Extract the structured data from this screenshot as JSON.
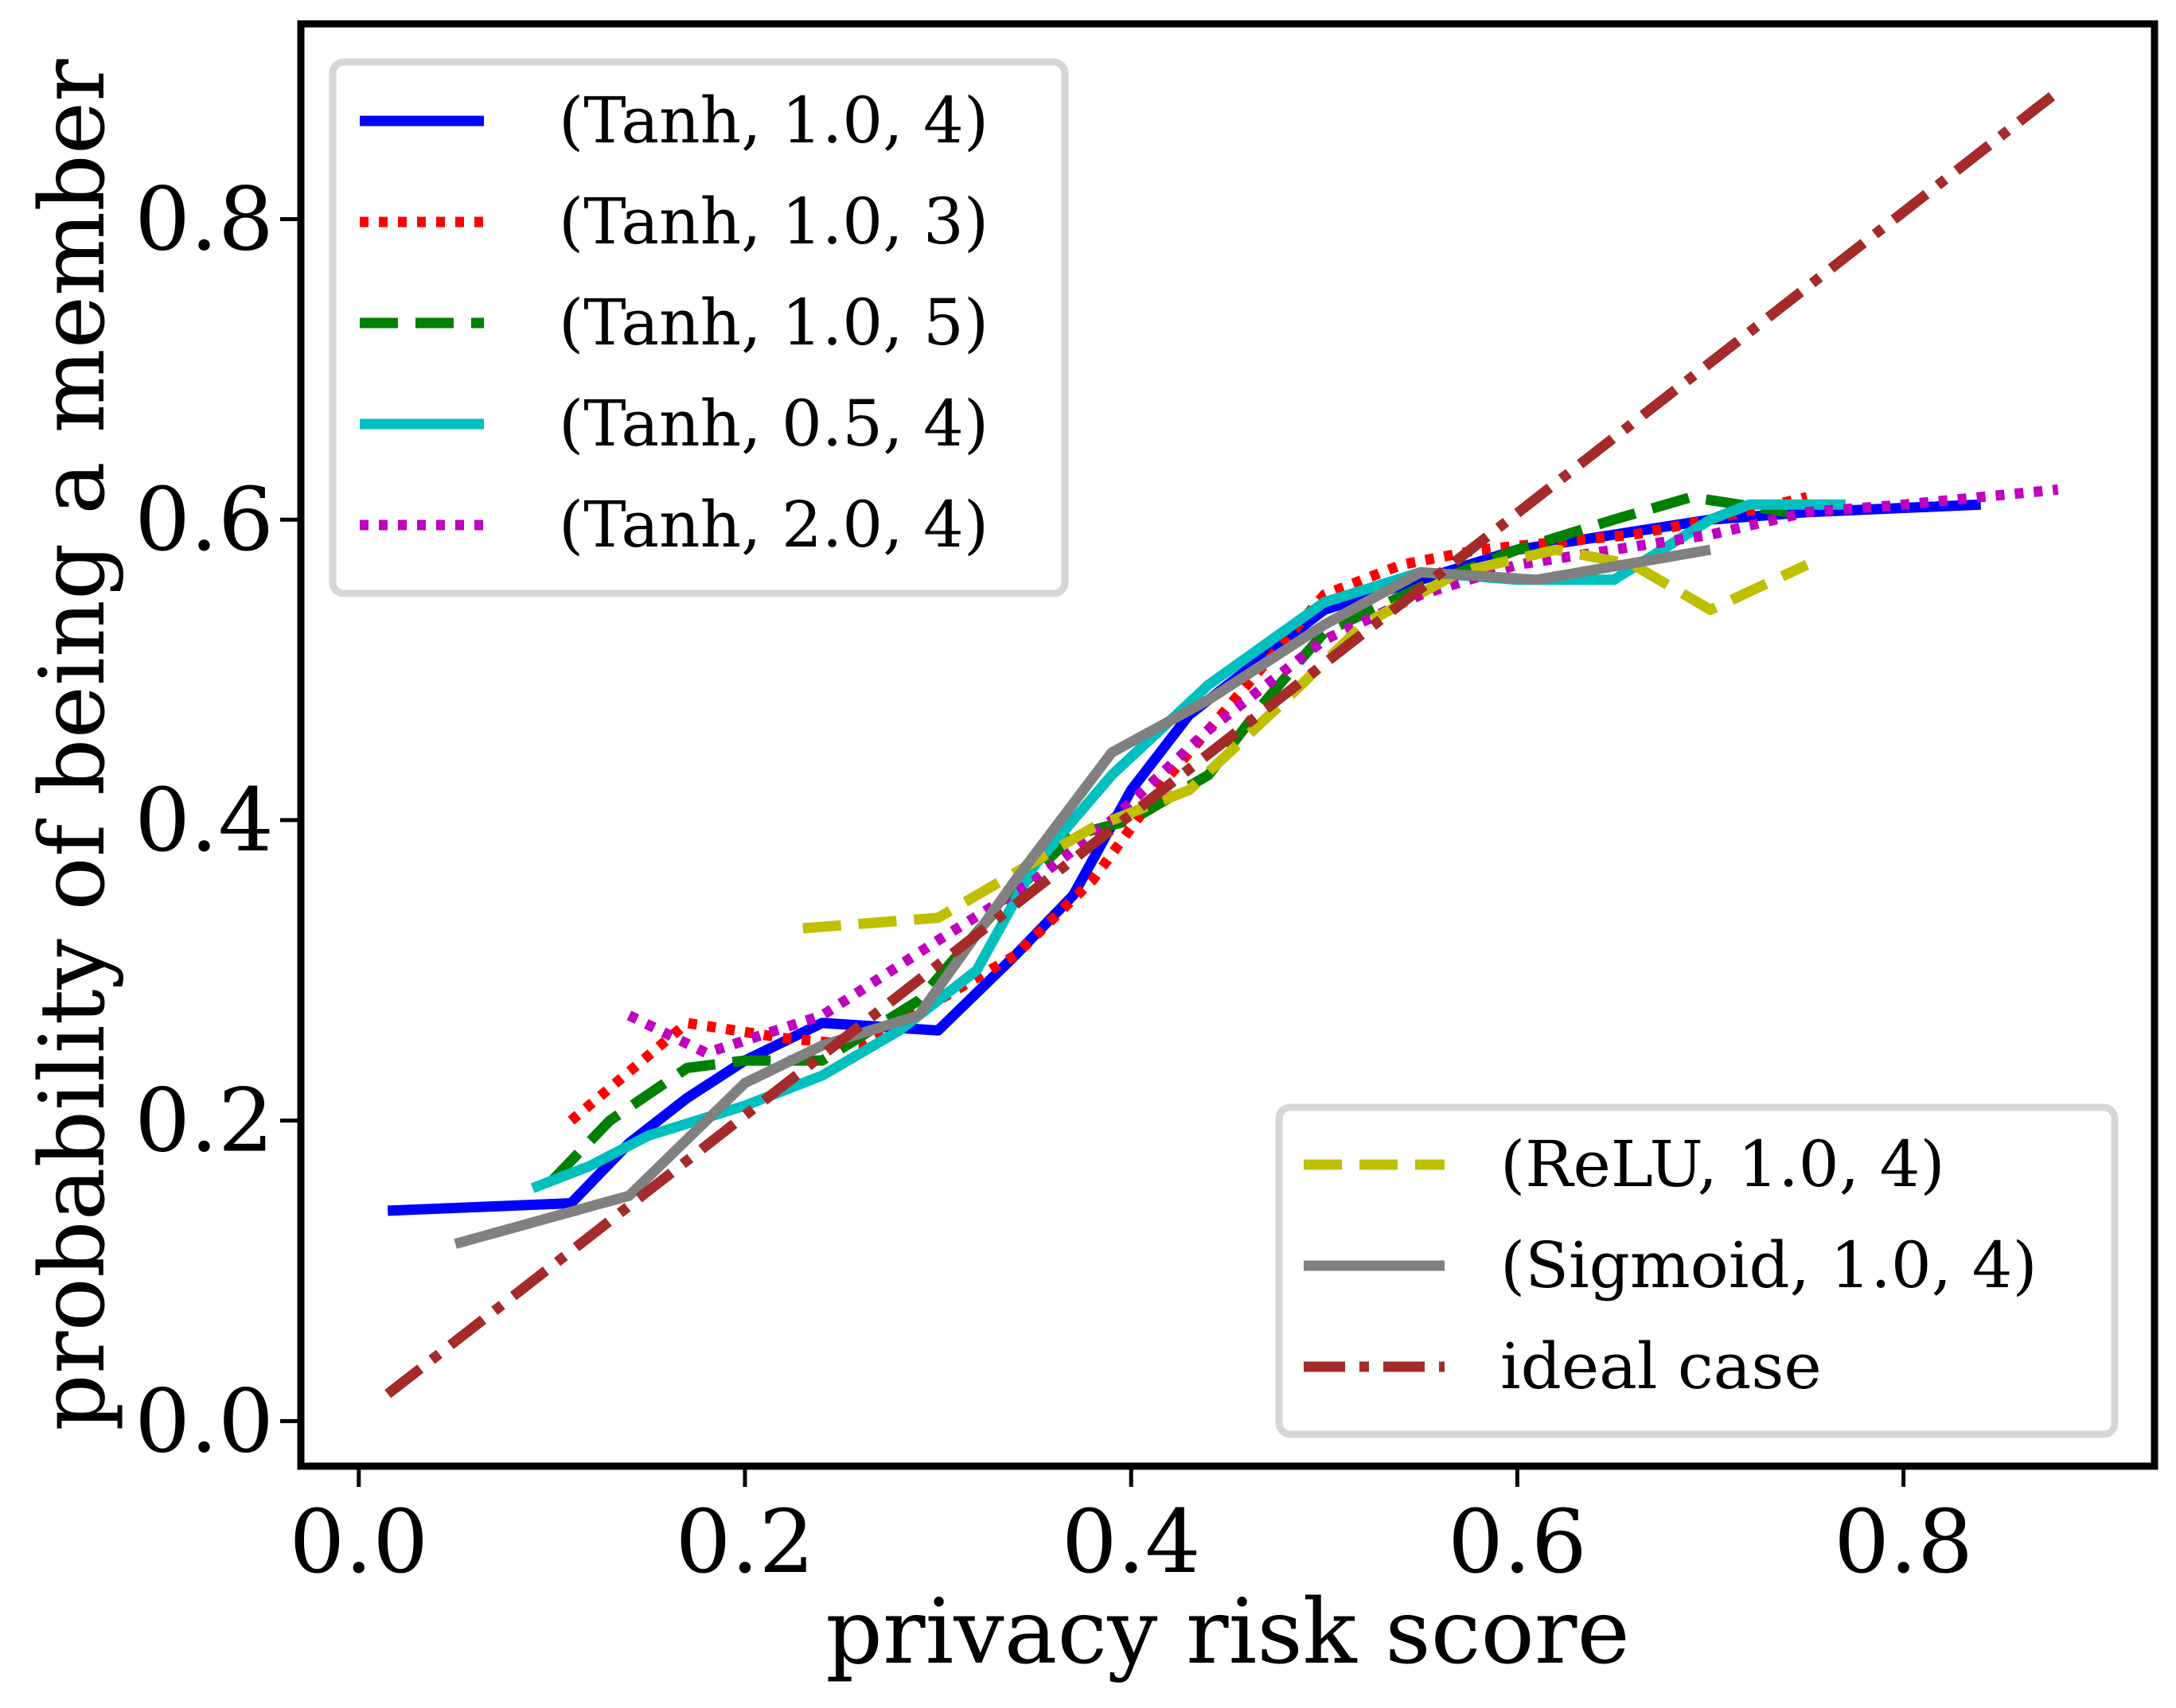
{
  "chart_data": {
    "type": "line",
    "title": "",
    "xlabel": "privacy risk score",
    "ylabel": "probability of being a member",
    "xlim": [
      -0.03,
      0.93
    ],
    "ylim": [
      -0.03,
      0.93
    ],
    "xticks": [
      0.0,
      0.2,
      0.4,
      0.6,
      0.8
    ],
    "xtick_labels": [
      "0.0",
      "0.2",
      "0.4",
      "0.6",
      "0.8"
    ],
    "yticks": [
      0.0,
      0.2,
      0.4,
      0.6,
      0.8
    ],
    "ytick_labels": [
      "0.0",
      "0.2",
      "0.4",
      "0.6",
      "0.8"
    ],
    "grid": false,
    "legends": [
      {
        "placement": "upper-left",
        "entries": [
          "(Tanh, 1.0, 4)",
          "(Tanh, 1.0, 3)",
          "(Tanh, 1.0, 5)",
          "(Tanh, 0.5, 4)",
          "(Tanh, 2.0, 4)"
        ]
      },
      {
        "placement": "lower-right",
        "entries": [
          "(ReLU, 1.0, 4)",
          "(Sigmoid, 1.0, 4)",
          "ideal case"
        ]
      }
    ],
    "series": [
      {
        "name": "(Tanh, 1.0, 4)",
        "color": "#0000ff",
        "style": "solid",
        "legend": 0,
        "x": [
          0.015,
          0.11,
          0.14,
          0.17,
          0.2,
          0.24,
          0.3,
          0.34,
          0.37,
          0.4,
          0.43,
          0.47,
          0.5,
          0.55,
          0.6,
          0.7,
          0.75,
          0.84
        ],
        "y": [
          0.14,
          0.145,
          0.185,
          0.215,
          0.24,
          0.265,
          0.26,
          0.31,
          0.35,
          0.42,
          0.47,
          0.51,
          0.54,
          0.56,
          0.58,
          0.6,
          0.605,
          0.61
        ]
      },
      {
        "name": "(Tanh, 1.0, 3)",
        "color": "#ff0000",
        "style": "dotted",
        "legend": 0,
        "x": [
          0.11,
          0.17,
          0.22,
          0.26,
          0.3,
          0.34,
          0.38,
          0.42,
          0.46,
          0.5,
          0.54,
          0.58,
          0.62,
          0.66,
          0.7,
          0.75
        ],
        "y": [
          0.2,
          0.265,
          0.255,
          0.25,
          0.28,
          0.31,
          0.36,
          0.43,
          0.49,
          0.55,
          0.57,
          0.58,
          0.585,
          0.59,
          0.6,
          0.615
        ]
      },
      {
        "name": "(Tanh, 1.0, 5)",
        "color": "#008000",
        "style": "dashed",
        "legend": 0,
        "x": [
          0.1,
          0.13,
          0.17,
          0.2,
          0.24,
          0.29,
          0.33,
          0.37,
          0.4,
          0.44,
          0.47,
          0.5,
          0.55,
          0.6,
          0.65,
          0.69,
          0.74
        ],
        "y": [
          0.16,
          0.2,
          0.235,
          0.24,
          0.24,
          0.28,
          0.34,
          0.39,
          0.4,
          0.43,
          0.48,
          0.525,
          0.555,
          0.58,
          0.6,
          0.615,
          0.605
        ]
      },
      {
        "name": "(Tanh, 0.5, 4)",
        "color": "#00bfbf",
        "style": "solid",
        "legend": 0,
        "x": [
          0.09,
          0.12,
          0.15,
          0.2,
          0.24,
          0.28,
          0.32,
          0.35,
          0.39,
          0.44,
          0.5,
          0.55,
          0.6,
          0.65,
          0.7,
          0.72,
          0.77
        ],
        "y": [
          0.155,
          0.17,
          0.19,
          0.21,
          0.23,
          0.26,
          0.3,
          0.37,
          0.43,
          0.49,
          0.545,
          0.565,
          0.56,
          0.56,
          0.6,
          0.61,
          0.61
        ]
      },
      {
        "name": "(Tanh, 2.0, 4)",
        "color": "#bf00bf",
        "style": "dotted",
        "legend": 0,
        "x": [
          0.14,
          0.18,
          0.24,
          0.3,
          0.35,
          0.39,
          0.44,
          0.5,
          0.55,
          0.6,
          0.65,
          0.7,
          0.75,
          0.8,
          0.88
        ],
        "y": [
          0.27,
          0.245,
          0.27,
          0.32,
          0.36,
          0.4,
          0.46,
          0.52,
          0.55,
          0.57,
          0.58,
          0.59,
          0.605,
          0.61,
          0.62
        ]
      },
      {
        "name": "(ReLU, 1.0, 4)",
        "color": "#bfbf00",
        "style": "dashed",
        "legend": 1,
        "x": [
          0.23,
          0.3,
          0.38,
          0.43,
          0.48,
          0.52,
          0.57,
          0.62,
          0.66,
          0.7,
          0.75
        ],
        "y": [
          0.328,
          0.335,
          0.395,
          0.42,
          0.48,
          0.53,
          0.565,
          0.58,
          0.57,
          0.54,
          0.57
        ]
      },
      {
        "name": "(Sigmoid, 1.0, 4)",
        "color": "#808080",
        "style": "solid",
        "legend": 1,
        "x": [
          0.05,
          0.14,
          0.2,
          0.24,
          0.29,
          0.34,
          0.39,
          0.44,
          0.5,
          0.55,
          0.61,
          0.7
        ],
        "y": [
          0.118,
          0.15,
          0.225,
          0.25,
          0.27,
          0.36,
          0.445,
          0.48,
          0.53,
          0.565,
          0.56,
          0.58
        ]
      },
      {
        "name": "ideal case",
        "color": "#a52a2a",
        "style": "dashdot",
        "legend": 1,
        "x": [
          0.015,
          0.88
        ],
        "y": [
          0.018,
          0.885
        ]
      }
    ]
  }
}
